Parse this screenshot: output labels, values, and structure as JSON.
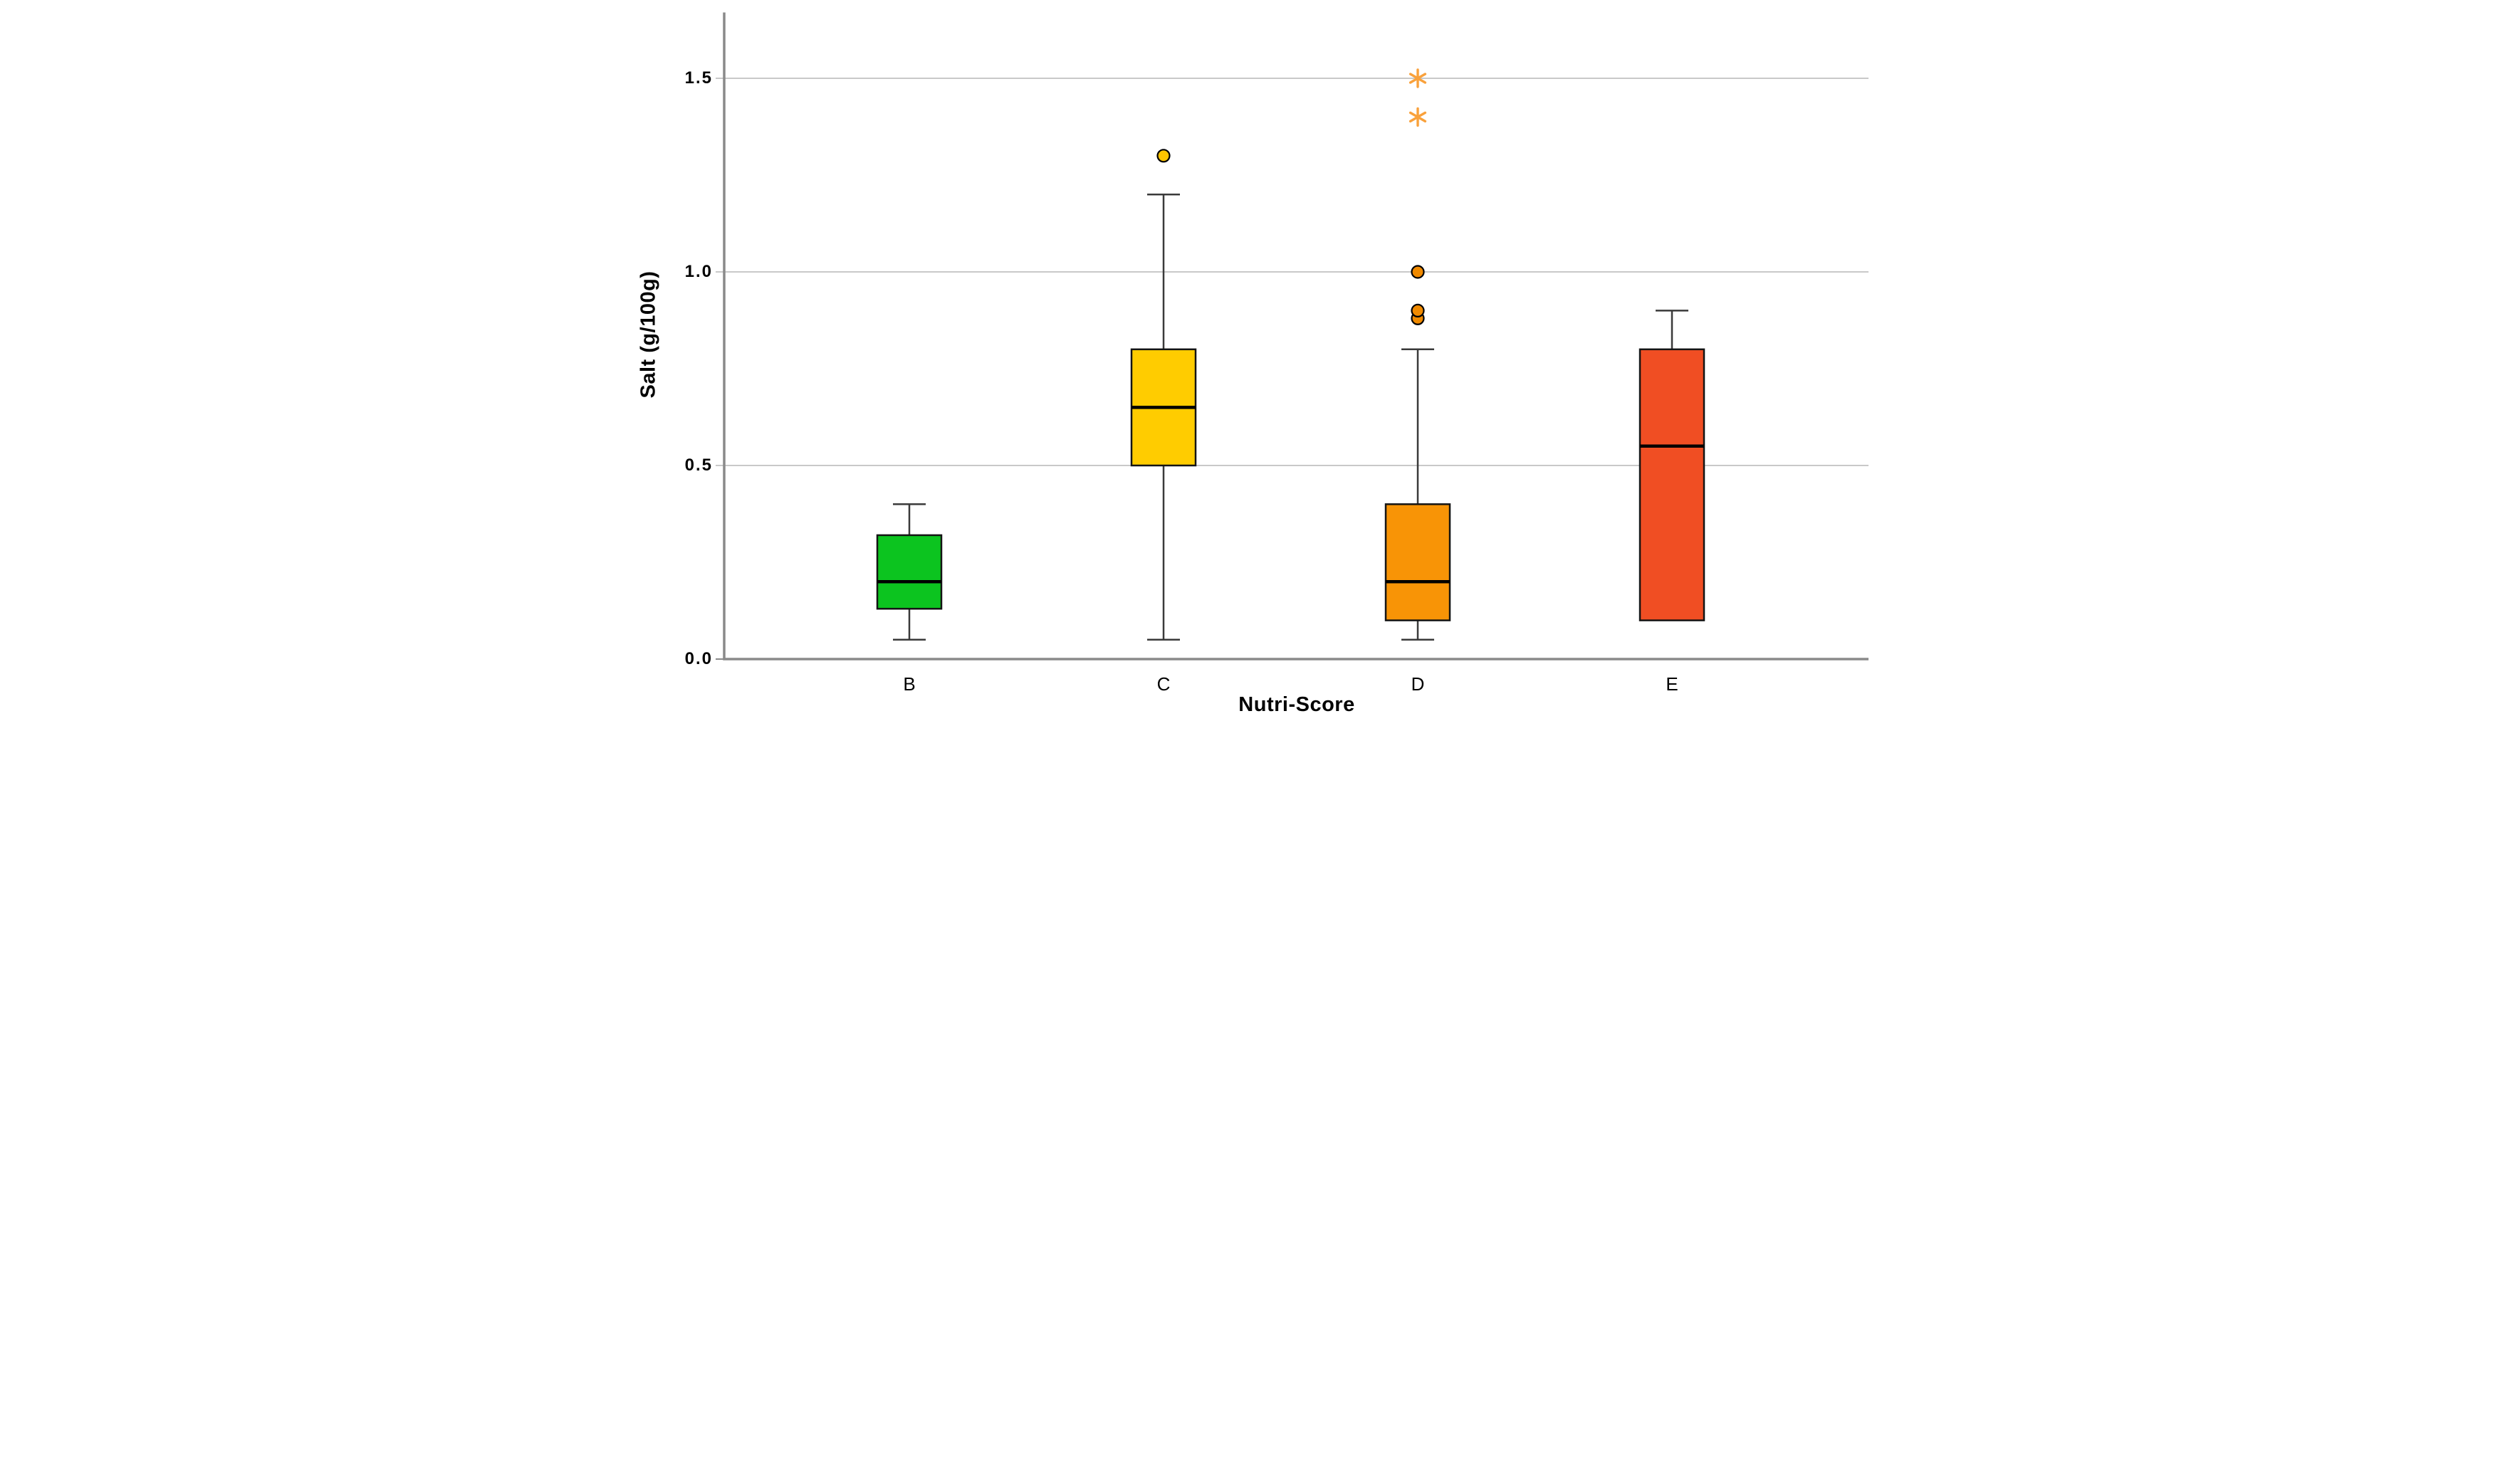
{
  "figure": {
    "background": "#FFFFFF"
  },
  "chart_data": {
    "type": "boxplot",
    "title": "",
    "xlabel": "Nutri-Score",
    "ylabel": "Salt (g/100g)",
    "categories": [
      "B",
      "C",
      "D",
      "E"
    ],
    "y_ticks": [
      "0.0",
      "0.5",
      "1.0",
      "1.5"
    ],
    "y_tick_values": [
      0,
      0.5,
      1.0,
      1.5
    ],
    "ylim": [
      0,
      1.67
    ],
    "grid": {
      "horizontal": true,
      "values": [
        0.5,
        1.0,
        1.5
      ],
      "color": "#C9C9C9"
    },
    "legend": "none",
    "series": [
      {
        "category": "B",
        "min": 0.05,
        "q1": 0.13,
        "median": 0.2,
        "q3": 0.32,
        "max": 0.4,
        "box_color": "#0CC41F",
        "outlier_fill": "#0CC41F",
        "outliers": [],
        "extremes": []
      },
      {
        "category": "C",
        "min": 0.05,
        "q1": 0.5,
        "median": 0.65,
        "q3": 0.8,
        "max": 1.2,
        "box_color": "#FFCC00",
        "outlier_fill": "#FFC400",
        "outliers": [
          1.3
        ],
        "extremes": []
      },
      {
        "category": "D",
        "min": 0.05,
        "q1": 0.1,
        "median": 0.2,
        "q3": 0.4,
        "max": 0.8,
        "box_color": "#F89406",
        "outlier_fill": "#F08A00",
        "outliers": [
          0.88,
          0.9,
          1.0
        ],
        "extremes": [
          1.4,
          1.5
        ]
      },
      {
        "category": "E",
        "min": 0.1,
        "q1": 0.1,
        "median": 0.55,
        "q3": 0.8,
        "max": 0.9,
        "box_color": "#F04E23",
        "outlier_fill": "#F04E23",
        "outliers": [],
        "extremes": []
      }
    ],
    "markers": {
      "outlier": {
        "shape": "circle",
        "stroke": "#000000"
      },
      "extreme": {
        "shape": "asterisk",
        "color": "#F9A13B"
      }
    },
    "colors": {
      "axis": "#8A8A8A",
      "grid": "#C9C9C9",
      "box_stroke": "#141414",
      "median": "#000000",
      "whisker": "#3A3A3A",
      "text": "#000000"
    }
  }
}
